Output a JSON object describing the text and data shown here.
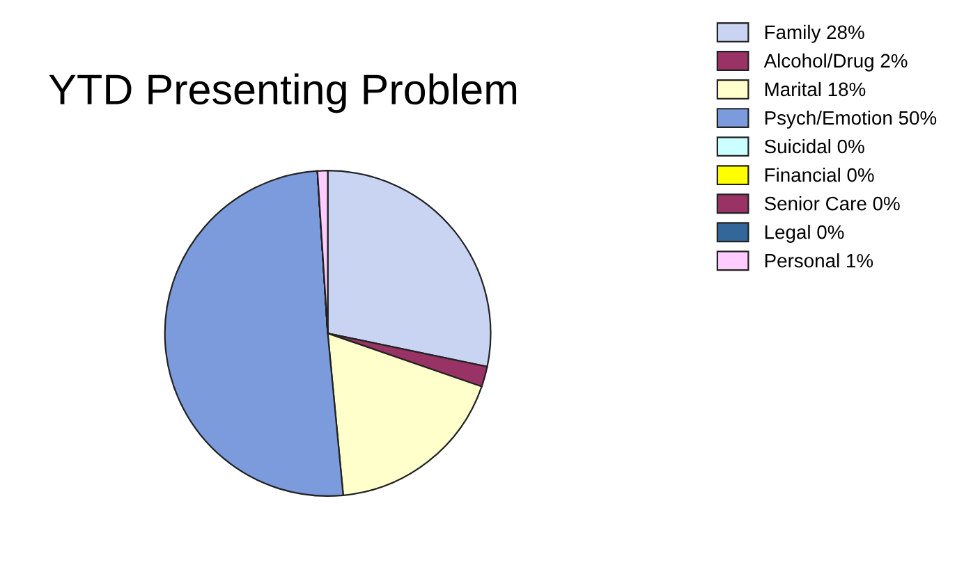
{
  "chart_data": {
    "type": "pie",
    "title": "YTD Presenting Problem",
    "categories": [
      "Family 28%",
      "Alcohol/Drug 2%",
      "Marital 18%",
      "Psych/Emotion 50%",
      "Suicidal 0%",
      "Financial 0%",
      "Senior Care 0%",
      "Legal 0%",
      "Personal 1%"
    ],
    "values": [
      28,
      2,
      18,
      50,
      0,
      0,
      0,
      0,
      1
    ],
    "colors": [
      "#c8d4f2",
      "#993366",
      "#ffffcc",
      "#7b9bdc",
      "#ccffff",
      "#ffff00",
      "#993366",
      "#336699",
      "#ffccff"
    ],
    "legend": "top right"
  }
}
